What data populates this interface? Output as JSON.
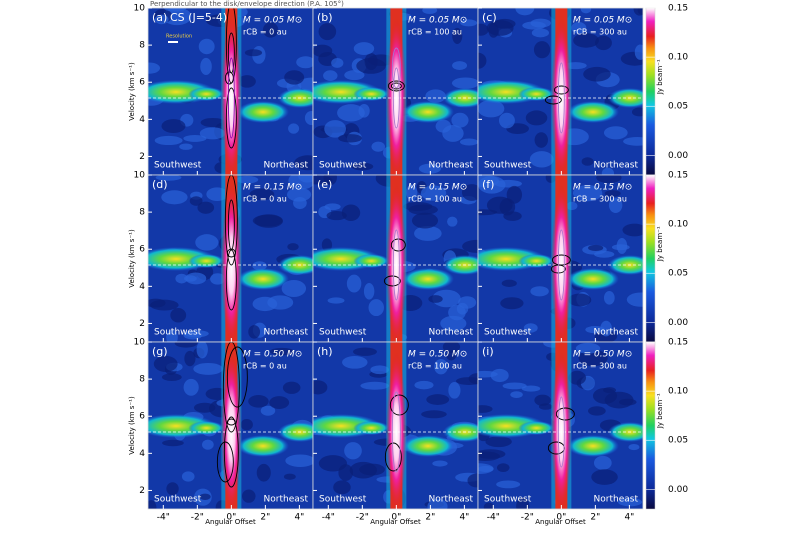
{
  "figure": {
    "title": "Perpendicular to the disk/envelope direction (P.A. 105°)",
    "line_label": "CS (J=5-4)",
    "resolution_label": "Resolution",
    "directions": [
      "Southwest",
      "Northeast"
    ],
    "x_axis_label": "Angular Offset",
    "y_axis_label": "Velocity (km s⁻¹)",
    "colorbar_label": "Jy beam⁻¹",
    "xlim": [
      -4.9,
      4.8
    ],
    "xticks": [
      {
        "value": -4,
        "label": "-4\""
      },
      {
        "value": -2,
        "label": "-2\""
      },
      {
        "value": 0,
        "label": "0\""
      },
      {
        "value": 2,
        "label": "2\""
      },
      {
        "value": 4,
        "label": "4\""
      }
    ],
    "ylim": [
      1.0,
      10.0
    ],
    "yticks": [
      2,
      4,
      6,
      8,
      10
    ],
    "colorbar": {
      "lim": [
        -0.02,
        0.15
      ],
      "ticks": [
        {
          "value": 0,
          "label": "0.00"
        },
        {
          "value": 0.05,
          "label": "0.05"
        },
        {
          "value": 0.1,
          "label": "0.10"
        },
        {
          "value": 0.15,
          "label": "0.15"
        }
      ]
    },
    "panels": [
      {
        "label": "(a)",
        "mass": "M = 0.05 M⊙",
        "radius": "rCB = 0 au"
      },
      {
        "label": "(b)",
        "mass": "M = 0.05 M⊙",
        "radius": "rCB = 100 au"
      },
      {
        "label": "(c)",
        "mass": "M = 0.05 M⊙",
        "radius": "rCB = 300 au"
      },
      {
        "label": "(d)",
        "mass": "M = 0.15 M⊙",
        "radius": "rCB = 0 au"
      },
      {
        "label": "(e)",
        "mass": "M = 0.15 M⊙",
        "radius": "rCB = 100 au"
      },
      {
        "label": "(f)",
        "mass": "M = 0.15 M⊙",
        "radius": "rCB = 300 au"
      },
      {
        "label": "(g)",
        "mass": "M = 0.50 M⊙",
        "radius": "rCB = 0 au"
      },
      {
        "label": "(h)",
        "mass": "M = 0.50 M⊙",
        "radius": "rCB = 100 au"
      },
      {
        "label": "(i)",
        "mass": "M = 0.50 M⊙",
        "radius": "rCB = 300 au"
      }
    ]
  }
}
